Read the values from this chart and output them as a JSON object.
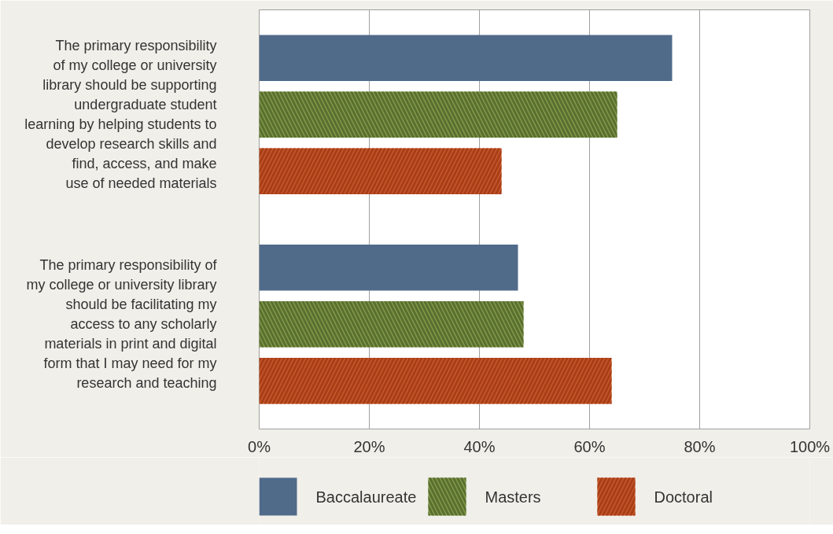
{
  "chart_data": {
    "type": "bar",
    "orientation": "horizontal",
    "categories": [
      "The primary responsibility\nof my college or university\nlibrary should be supporting\nundergraduate student\nlearning by helping students to\ndevelop research skills and\nfind, access, and make\nuse of needed materials",
      "The primary responsibility of\nmy college or university library\nshould be facilitating my\naccess to any scholarly\nmaterials in print and digital\nform that I may need for my\nresearch and teaching"
    ],
    "series": [
      {
        "name": "Baccalaureate",
        "color": "#506a8a",
        "values": [
          75,
          47
        ]
      },
      {
        "name": "Masters",
        "color": "#7f9a48",
        "values": [
          65,
          48
        ]
      },
      {
        "name": "Doctoral",
        "color": "#c8582a",
        "values": [
          44,
          64
        ]
      }
    ],
    "xlim": [
      0,
      100
    ],
    "xticks": [
      {
        "value": 0,
        "label": "0%"
      },
      {
        "value": 20,
        "label": "20%"
      },
      {
        "value": 40,
        "label": "40%"
      },
      {
        "value": 60,
        "label": "60%"
      },
      {
        "value": 80,
        "label": "80%"
      },
      {
        "value": 100,
        "label": "100%"
      }
    ],
    "grid": "x",
    "legend": "bottom"
  }
}
